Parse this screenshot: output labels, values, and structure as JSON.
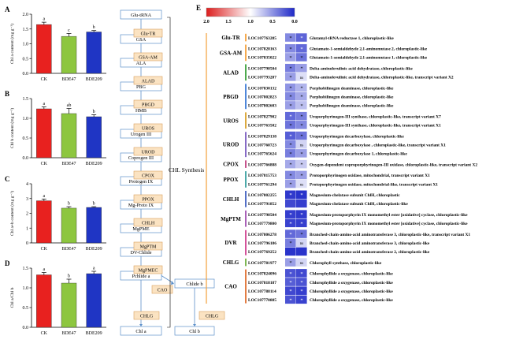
{
  "panels": {
    "A": "A",
    "B": "B",
    "C": "C",
    "D": "D",
    "E": "E"
  },
  "chart_data": [
    {
      "type": "bar",
      "panel": "A",
      "categories": [
        "CK",
        "BDE47",
        "BDE209"
      ],
      "values": [
        1.65,
        1.25,
        1.4
      ],
      "errors": [
        0.08,
        0.1,
        0.05
      ],
      "letters": [
        "a",
        "c",
        "b"
      ],
      "colors": [
        "#e8211f",
        "#8dc63f",
        "#1f35c4"
      ],
      "ylabel": "Chl a content (mg g⁻¹)",
      "ylim": [
        0,
        2.0
      ],
      "yticks": [
        "0.0",
        "0.5",
        "1.0",
        "1.5",
        "2.0"
      ],
      "ytick_values": [
        0,
        0.5,
        1.0,
        1.5,
        2.0
      ]
    },
    {
      "type": "bar",
      "panel": "B",
      "categories": [
        "CK",
        "BDE47",
        "BDE209"
      ],
      "values": [
        1.24,
        1.12,
        1.04
      ],
      "errors": [
        0.05,
        0.13,
        0.05
      ],
      "letters": [
        "a",
        "ab",
        "b"
      ],
      "colors": [
        "#e8211f",
        "#8dc63f",
        "#1f35c4"
      ],
      "ylabel": "Chl b content (mg g⁻¹)",
      "ylim": [
        0,
        1.5
      ],
      "yticks": [
        "0.0",
        "0.5",
        "1.0",
        "1.5"
      ],
      "ytick_values": [
        0,
        0.5,
        1.0,
        1.5
      ]
    },
    {
      "type": "bar",
      "panel": "C",
      "categories": [
        "CK",
        "BDE47",
        "BDE209"
      ],
      "values": [
        2.85,
        2.35,
        2.4
      ],
      "errors": [
        0.12,
        0.1,
        0.05
      ],
      "letters": [
        "a",
        "b",
        "b"
      ],
      "colors": [
        "#e8211f",
        "#8dc63f",
        "#1f35c4"
      ],
      "ylabel": "Chl a+b content (mg g⁻¹)",
      "ylim": [
        0,
        4
      ],
      "yticks": [
        "0",
        "1",
        "2",
        "3",
        "4"
      ],
      "ytick_values": [
        0,
        1,
        2,
        3,
        4
      ]
    },
    {
      "type": "bar",
      "panel": "D",
      "categories": [
        "CK",
        "BDE47",
        "BDE209"
      ],
      "values": [
        1.33,
        1.12,
        1.36
      ],
      "errors": [
        0.06,
        0.1,
        0.06
      ],
      "letters": [
        "a",
        "b",
        "a"
      ],
      "colors": [
        "#e8211f",
        "#8dc63f",
        "#1f35c4"
      ],
      "ylabel": "Chl a/Chl b",
      "ylim": [
        0,
        1.5
      ],
      "yticks": [
        "0.0",
        "0.5",
        "1.0",
        "1.5"
      ],
      "ytick_values": [
        0,
        0.5,
        1.0,
        1.5
      ]
    }
  ],
  "pathway": {
    "title": "CHL Synthesis",
    "metabolites": [
      "Glu-tRNA",
      "GSA",
      "ALA",
      "PBG",
      "HMB",
      "Urogen III",
      "Coprogen III",
      "Protogen IX",
      "Mg-Proto IX",
      "MgPME",
      "DV-Chlide",
      "Pchlide a",
      "Chlide a",
      "Chl a",
      "Chlide b",
      "Chl b"
    ],
    "enzymes": [
      "Glu-TR",
      "GSA-AM",
      "ALAD",
      "PBGD",
      "UROS",
      "UROD",
      "CPOX",
      "PPOX",
      "CHLH",
      "MgPTM",
      "MgPMEC",
      "DVR",
      "CAO",
      "CHLG",
      "CHLG"
    ]
  },
  "heatmap": {
    "colorbar": {
      "ticks": [
        "2.0",
        "1.5",
        "1.0",
        "0.5",
        "0.0"
      ],
      "ticks_values": [
        2.0,
        1.5,
        1.0,
        0.5,
        0.0
      ]
    },
    "groups": [
      {
        "name": "Glu-TR",
        "color": "#f4a13b",
        "rows": [
          {
            "id": "LOC107763285",
            "desc": "Glutamyl-tRNA reductase 1, chloroplastic-like",
            "v": [
              0.45,
              0.28
            ],
            "m": [
              "*",
              "*"
            ]
          }
        ]
      },
      {
        "name": "GSA-AM",
        "color": "#f4a13b",
        "rows": [
          {
            "id": "LOC107828163",
            "desc": "Glutamate-1-semialdehyde 2,1-aminomutase 2, chloroplastic-like",
            "v": [
              0.45,
              0.3
            ],
            "m": [
              "*",
              "*"
            ]
          },
          {
            "id": "LOC107835022",
            "desc": "Glutamate-1-semialdehyde 2,1-aminomutase 1, chloroplastic-like",
            "v": [
              0.55,
              0.35
            ],
            "m": [
              "*",
              "*"
            ]
          }
        ]
      },
      {
        "name": "ALAD",
        "color": "#3aa03a",
        "rows": [
          {
            "id": "LOC107798504",
            "desc": "Delta-aminolevulinic acid dehydratase, chloroplastic-like",
            "v": [
              0.4,
              0.55
            ],
            "m": [
              "*",
              "*"
            ]
          },
          {
            "id": "LOC107793287",
            "desc": "Delta-aminolevulinic acid dehydratase, chloroplastic-like, transcript variant X2",
            "v": [
              0.55,
              0.85
            ],
            "m": [
              "*",
              "ns"
            ]
          }
        ]
      },
      {
        "name": "PBGD",
        "color": "#3c7ad6",
        "rows": [
          {
            "id": "LOC107830132",
            "desc": "Porphobilinogen deaminase, chloroplastic-like",
            "v": [
              0.5,
              0.65
            ],
            "m": [
              "*",
              "*"
            ]
          },
          {
            "id": "LOC107802823",
            "desc": "Porphobilinogen deaminase, chloroplastic-like",
            "v": [
              0.45,
              0.6
            ],
            "m": [
              "*",
              "*"
            ]
          },
          {
            "id": "LOC107802603",
            "desc": "Porphobilinogen deaminase, chloroplastic-like",
            "v": [
              0.55,
              0.7
            ],
            "m": [
              "*",
              "*"
            ]
          }
        ]
      },
      {
        "name": "UROS",
        "color": "#d9a12a",
        "rows": [
          {
            "id": "LOC107827902",
            "desc": "Uroporphyrinogen-III synthase, chloroplastic-like, transcript variant X7",
            "v": [
              0.3,
              0.4
            ],
            "m": [
              "*",
              "*"
            ]
          },
          {
            "id": "LOC107763502",
            "desc": "Uroporphyrinogen-III synthase, chloroplastic-like, transcript variant X1",
            "v": [
              0.35,
              0.45
            ],
            "m": [
              "*",
              "*"
            ]
          }
        ]
      },
      {
        "name": "UROD",
        "color": "#7a5cc0",
        "rows": [
          {
            "id": "LOC107829138",
            "desc": "Uroporphyrinogen decarboxylase, chloroplastic-like",
            "v": [
              0.25,
              0.35
            ],
            "m": [
              "*",
              "*"
            ]
          },
          {
            "id": "LOC107768723",
            "desc": "Uroporphyrinogen decarboxylase , chloroplastic-like, transcript variant X1",
            "v": [
              0.45,
              0.8
            ],
            "m": [
              "*",
              "ns"
            ]
          },
          {
            "id": "LOC107765624",
            "desc": "Uroporphyrinogen decarboxylase 1, chloroplastic-like",
            "v": [
              0.4,
              0.55
            ],
            "m": [
              "*",
              "*"
            ]
          }
        ]
      },
      {
        "name": "CPOX",
        "color": "#c04080",
        "rows": [
          {
            "id": "LOC107766888",
            "desc": "Oxygen-dependent coproporphyrinogen-III oxidase, chloroplastic-like, transcript variant X2",
            "v": [
              0.6,
              0.75
            ],
            "m": [
              "*",
              "*"
            ]
          }
        ]
      },
      {
        "name": "PPOX",
        "color": "#3aa0a0",
        "rows": [
          {
            "id": "LOC107815753",
            "desc": "Protoporphyrinogen oxidase, mitochondrial, transcript variant X1",
            "v": [
              0.45,
              0.55
            ],
            "m": [
              "*",
              "*"
            ]
          },
          {
            "id": "LOC107761294",
            "desc": "Protoporphyrinogen oxidase, mitochondrial-like, transcript variant X1",
            "v": [
              0.55,
              0.85
            ],
            "m": [
              "*",
              "ns"
            ]
          }
        ]
      },
      {
        "name": "CHLH",
        "color": "#4060c0",
        "rows": [
          {
            "id": "LOC107802255",
            "desc": "Magnesium-chelatase subunit ChlH, chloroplastic",
            "v": [
              0.08,
              0.05
            ],
            "m": [
              "*",
              "*"
            ]
          },
          {
            "id": "LOC107791852",
            "desc": "Magnesium-chelatase subunit ChlH, chloroplastic-like",
            "v": [
              0.15,
              0.1
            ],
            "m": [
              "",
              ""
            ]
          }
        ]
      },
      {
        "name": "MgPTM",
        "color": "#a050b0",
        "rows": [
          {
            "id": "LOC107798504",
            "desc": "Magnesium-protoporphyrin IX monomethyl ester [oxidative] cyclase, chloroplastic-like",
            "v": [
              0.1,
              0.08
            ],
            "m": [
              "*",
              "*"
            ]
          },
          {
            "id": "LOC107779800",
            "desc": "Magnesium-protoporphyrin IX monomethyl ester [oxidative] cyclase, chloroplastic-like",
            "v": [
              0.12,
              0.1
            ],
            "m": [
              "*",
              "*"
            ]
          }
        ]
      },
      {
        "name": "DVR",
        "color": "#d04090",
        "rows": [
          {
            "id": "LOC107806278",
            "desc": "Branched-chain-amino-acid aminotransferase 3, chloroplastic-like, transcript variant X1",
            "v": [
              0.3,
              0.35
            ],
            "m": [
              "*",
              "*"
            ]
          },
          {
            "id": "LOC107796186",
            "desc": "Branched-chain-amino-acid aminotransferase 3, chloroplastic-like",
            "v": [
              0.4,
              0.8
            ],
            "m": [
              "*",
              "ns"
            ]
          },
          {
            "id": "LOC107769252",
            "desc": "Branched-chain-amino-acid aminotransferase 2, chloroplastic-like",
            "v": [
              0.05,
              0.05
            ],
            "m": [
              "",
              ""
            ]
          }
        ]
      },
      {
        "name": "CHLG",
        "color": "#70b040",
        "rows": [
          {
            "id": "LOC107781977",
            "desc": "Chlorophyll synthase, chloroplastic-like",
            "v": [
              0.55,
              0.8
            ],
            "m": [
              "*",
              "ns"
            ]
          }
        ]
      },
      {
        "name": "CAO",
        "color": "#e07030",
        "rows": [
          {
            "id": "LOC107824096",
            "desc": "Chlorophyllide a oxygenase, chloroplastic-like",
            "v": [
              0.2,
              0.15
            ],
            "m": [
              "*",
              "*"
            ]
          },
          {
            "id": "LOC107818187",
            "desc": "Chlorophyllide a oxygenase, chloroplastic-like",
            "v": [
              0.25,
              0.2
            ],
            "m": [
              "*",
              "*"
            ]
          },
          {
            "id": "LOC107788114",
            "desc": "Chlorophyllide a oxygenase, chloroplastic-like",
            "v": [
              0.15,
              0.1
            ],
            "m": [
              "*",
              "*"
            ]
          },
          {
            "id": "LOC107770885",
            "desc": "Chlorophyllide a oxygenase, chloroplastic-like",
            "v": [
              0.2,
              0.12
            ],
            "m": [
              "*",
              "*"
            ]
          }
        ]
      }
    ]
  }
}
